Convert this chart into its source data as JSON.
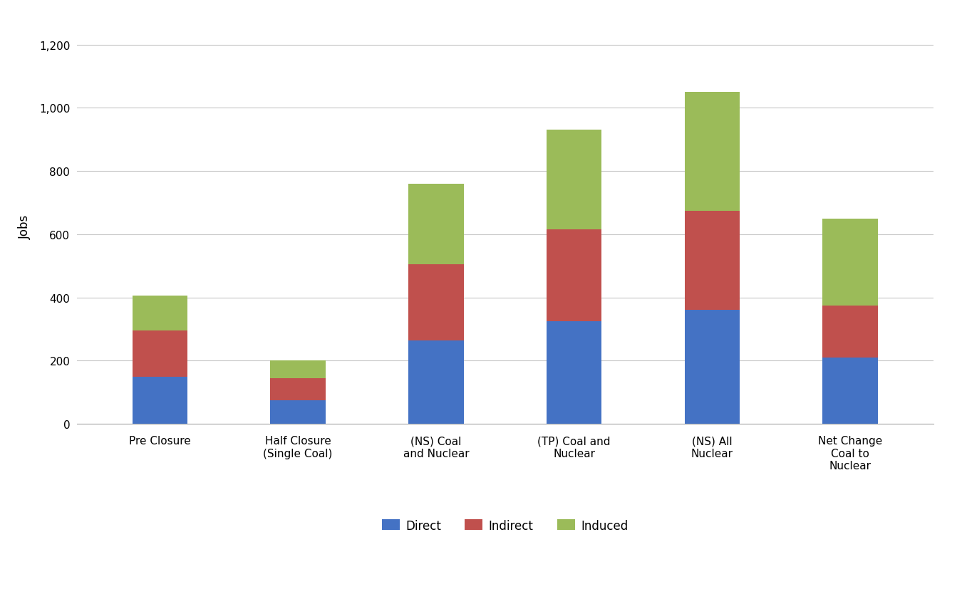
{
  "categories": [
    "Pre Closure",
    "Half Closure\n(Single Coal)",
    "(NS) Coal\nand Nuclear",
    "(TP) Coal and\nNuclear",
    "(NS) All\nNuclear",
    "Net Change\nCoal to\nNuclear"
  ],
  "direct": [
    150,
    75,
    265,
    325,
    360,
    210
  ],
  "indirect": [
    145,
    70,
    240,
    290,
    315,
    165
  ],
  "induced": [
    110,
    55,
    255,
    315,
    375,
    275
  ],
  "colors": {
    "direct": "#4472C4",
    "indirect": "#C0504D",
    "induced": "#9BBB59"
  },
  "ylabel": "Jobs",
  "ylim": [
    0,
    1250
  ],
  "yticks": [
    0,
    200,
    400,
    600,
    800,
    1000,
    1200
  ],
  "legend_labels": [
    "Direct",
    "Indirect",
    "Induced"
  ],
  "background_color": "#ffffff",
  "grid_color": "#c8c8c8",
  "bar_width": 0.4,
  "axis_fontsize": 12,
  "tick_fontsize": 11,
  "legend_fontsize": 12
}
